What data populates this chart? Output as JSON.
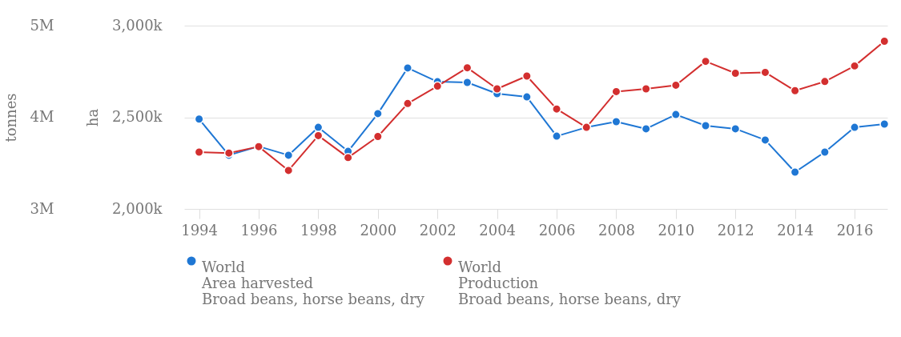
{
  "chart_data": {
    "type": "line",
    "x": [
      1994,
      1995,
      1996,
      1997,
      1998,
      1999,
      2000,
      2001,
      2002,
      2003,
      2004,
      2005,
      2006,
      2007,
      2008,
      2009,
      2010,
      2011,
      2012,
      2013,
      2014,
      2015,
      2016,
      2017
    ],
    "series": [
      {
        "name": "World\nArea harvested\nBroad beans, horse beans, dry",
        "color": "#1f77d4",
        "values": [
          2490000,
          2293000,
          2341000,
          2293000,
          2445000,
          2314000,
          2520000,
          2769000,
          2694000,
          2690000,
          2629000,
          2611000,
          2397000,
          2445000,
          2476000,
          2437000,
          2515000,
          2454000,
          2437000,
          2376000,
          2201000,
          2310000,
          2445000,
          2463000
        ]
      },
      {
        "name": "World\nProduction\nBroad beans, horse beans, dry",
        "color": "#d32f2f",
        "axis": "y2",
        "values": [
          3620000,
          3610000,
          3680000,
          3420000,
          3800000,
          3560000,
          3790000,
          4150000,
          4340000,
          4540000,
          4310000,
          4450000,
          4090000,
          3890000,
          4280000,
          4310000,
          4350000,
          4610000,
          4480000,
          4490000,
          4290000,
          4390000,
          4560000,
          4830000
        ]
      }
    ],
    "ylabel": "ha",
    "y2label": "tonnes",
    "xlim": [
      1993.5,
      2017.1
    ],
    "xticks": [
      1994,
      1996,
      1998,
      2000,
      2002,
      2004,
      2006,
      2008,
      2010,
      2012,
      2014,
      2016
    ],
    "ylim": [
      2000000,
      3000000
    ],
    "yticks": [
      {
        "value": 2000000,
        "label": "2,000k"
      },
      {
        "value": 2500000,
        "label": "2,500k"
      },
      {
        "value": 3000000,
        "label": "3,000k"
      }
    ],
    "y2lim": [
      3000000,
      5000000
    ],
    "y2ticks": [
      {
        "value": 3000000,
        "label": "3M"
      },
      {
        "value": 4000000,
        "label": "4M"
      },
      {
        "value": 5000000,
        "label": "5M"
      }
    ],
    "grid": "y",
    "legend": "bottom",
    "marker": "circle",
    "line_style": "solid"
  }
}
